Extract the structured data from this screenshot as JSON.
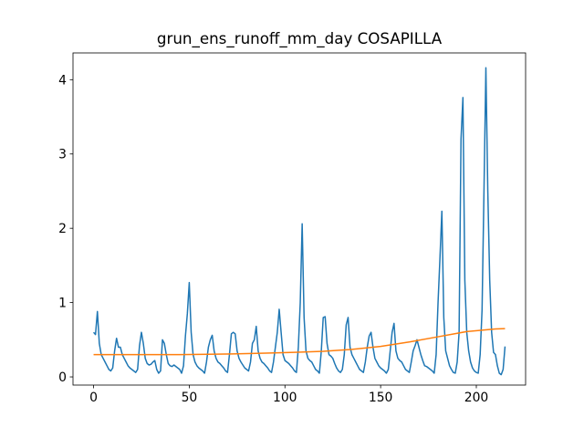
{
  "chart_data": {
    "type": "line",
    "title": "grun_ens_runoff_mm_day COSAPILLA",
    "xlim": [
      -10.75,
      225.75
    ],
    "xticks": [
      0,
      50,
      100,
      150,
      200
    ],
    "ylim": [
      -0.11,
      4.36
    ],
    "yticks": [
      0,
      1,
      2,
      3,
      4
    ],
    "series": [
      {
        "color": "#1f77b4",
        "x": [
          0,
          1,
          2,
          3,
          4,
          5,
          6,
          7,
          8,
          9,
          10,
          11,
          12,
          13,
          14,
          15,
          16,
          17,
          18,
          19,
          20,
          21,
          22,
          23,
          24,
          25,
          26,
          27,
          28,
          29,
          30,
          31,
          32,
          33,
          34,
          35,
          36,
          37,
          38,
          39,
          40,
          41,
          42,
          43,
          44,
          45,
          46,
          47,
          48,
          49,
          50,
          51,
          52,
          53,
          54,
          55,
          56,
          57,
          58,
          59,
          60,
          61,
          62,
          63,
          64,
          65,
          66,
          67,
          68,
          69,
          70,
          71,
          72,
          73,
          74,
          75,
          76,
          77,
          78,
          79,
          80,
          81,
          82,
          83,
          84,
          85,
          86,
          87,
          88,
          89,
          90,
          91,
          92,
          93,
          94,
          95,
          96,
          97,
          98,
          99,
          100,
          101,
          102,
          103,
          104,
          105,
          106,
          107,
          108,
          109,
          110,
          111,
          112,
          113,
          114,
          115,
          116,
          117,
          118,
          119,
          120,
          121,
          122,
          123,
          124,
          125,
          126,
          127,
          128,
          129,
          130,
          131,
          132,
          133,
          134,
          135,
          136,
          137,
          138,
          139,
          140,
          141,
          142,
          143,
          144,
          145,
          146,
          147,
          148,
          149,
          150,
          151,
          152,
          153,
          154,
          155,
          156,
          157,
          158,
          159,
          160,
          161,
          162,
          163,
          164,
          165,
          166,
          167,
          168,
          169,
          170,
          171,
          172,
          173,
          174,
          175,
          176,
          177,
          178,
          179,
          180,
          181,
          182,
          183,
          184,
          185,
          186,
          187,
          188,
          189,
          190,
          191,
          192,
          193,
          194,
          195,
          196,
          197,
          198,
          199,
          200,
          201,
          202,
          203,
          204,
          205,
          206,
          207,
          208,
          209,
          210,
          211,
          212,
          213,
          214,
          215
        ],
        "values": [
          0.6,
          0.57,
          0.88,
          0.45,
          0.3,
          0.25,
          0.2,
          0.15,
          0.1,
          0.08,
          0.12,
          0.35,
          0.52,
          0.4,
          0.4,
          0.3,
          0.25,
          0.2,
          0.15,
          0.12,
          0.1,
          0.08,
          0.06,
          0.1,
          0.42,
          0.6,
          0.45,
          0.25,
          0.18,
          0.16,
          0.17,
          0.2,
          0.22,
          0.1,
          0.05,
          0.08,
          0.5,
          0.45,
          0.3,
          0.18,
          0.15,
          0.14,
          0.16,
          0.14,
          0.12,
          0.1,
          0.05,
          0.15,
          0.55,
          0.85,
          1.27,
          0.6,
          0.3,
          0.2,
          0.15,
          0.12,
          0.1,
          0.08,
          0.05,
          0.2,
          0.4,
          0.5,
          0.56,
          0.35,
          0.25,
          0.2,
          0.18,
          0.15,
          0.12,
          0.08,
          0.06,
          0.3,
          0.58,
          0.6,
          0.58,
          0.35,
          0.25,
          0.2,
          0.16,
          0.12,
          0.1,
          0.08,
          0.2,
          0.45,
          0.5,
          0.68,
          0.35,
          0.25,
          0.2,
          0.18,
          0.15,
          0.12,
          0.08,
          0.06,
          0.2,
          0.4,
          0.6,
          0.91,
          0.6,
          0.3,
          0.22,
          0.2,
          0.18,
          0.15,
          0.12,
          0.08,
          0.06,
          0.4,
          1.0,
          2.06,
          0.8,
          0.35,
          0.25,
          0.22,
          0.2,
          0.15,
          0.1,
          0.08,
          0.05,
          0.35,
          0.8,
          0.81,
          0.45,
          0.3,
          0.28,
          0.25,
          0.18,
          0.12,
          0.08,
          0.06,
          0.1,
          0.3,
          0.7,
          0.8,
          0.4,
          0.3,
          0.25,
          0.2,
          0.15,
          0.1,
          0.08,
          0.06,
          0.2,
          0.4,
          0.55,
          0.6,
          0.4,
          0.25,
          0.2,
          0.15,
          0.12,
          0.1,
          0.08,
          0.05,
          0.1,
          0.35,
          0.6,
          0.72,
          0.35,
          0.25,
          0.22,
          0.2,
          0.15,
          0.1,
          0.08,
          0.06,
          0.2,
          0.35,
          0.42,
          0.5,
          0.4,
          0.3,
          0.22,
          0.15,
          0.14,
          0.12,
          0.1,
          0.08,
          0.05,
          0.3,
          1.0,
          1.6,
          2.23,
          0.8,
          0.35,
          0.25,
          0.15,
          0.1,
          0.06,
          0.05,
          0.2,
          0.6,
          3.2,
          3.76,
          1.3,
          0.6,
          0.35,
          0.2,
          0.12,
          0.08,
          0.06,
          0.05,
          0.3,
          0.9,
          2.5,
          4.16,
          2.5,
          1.3,
          0.6,
          0.33,
          0.3,
          0.15,
          0.05,
          0.03,
          0.1,
          0.41
        ]
      },
      {
        "color": "#ff7f0e",
        "x": [
          0,
          15,
          30,
          45,
          60,
          75,
          90,
          105,
          120,
          135,
          150,
          165,
          180,
          195,
          210,
          215
        ],
        "values": [
          0.3,
          0.3,
          0.3,
          0.3,
          0.305,
          0.31,
          0.32,
          0.33,
          0.345,
          0.37,
          0.41,
          0.47,
          0.54,
          0.61,
          0.645,
          0.65
        ]
      }
    ]
  }
}
